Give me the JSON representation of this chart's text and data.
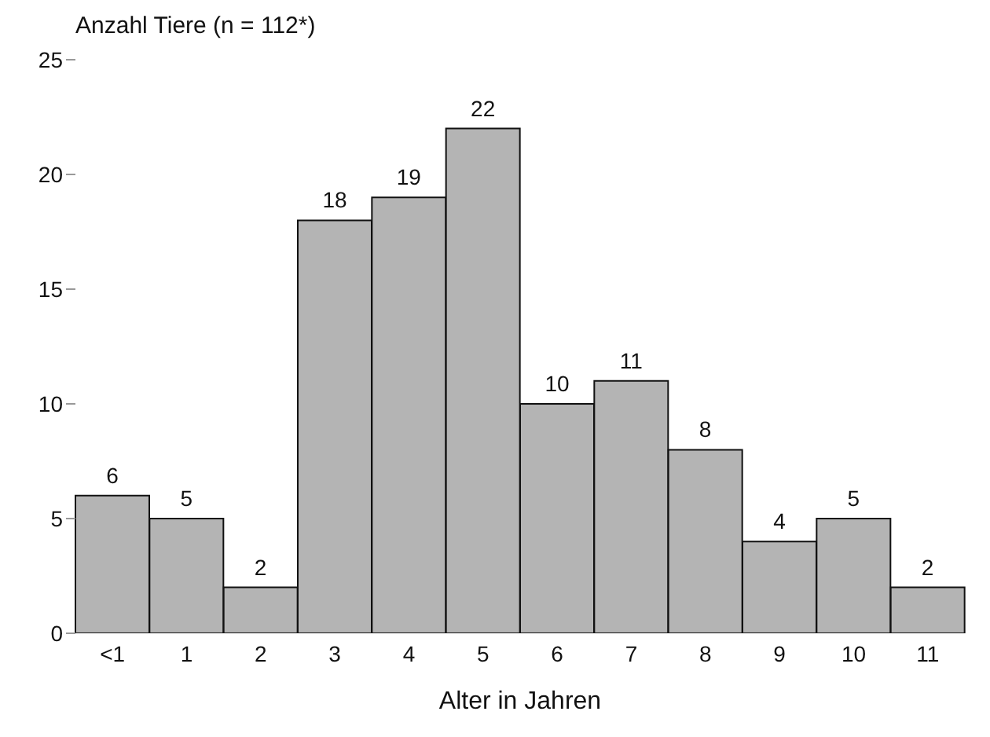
{
  "chart_data": {
    "type": "bar",
    "title": "Anzahl Tiere (n = 112*)",
    "xlabel": "Alter in Jahren",
    "categories": [
      "<1",
      "1",
      "2",
      "3",
      "4",
      "5",
      "6",
      "7",
      "8",
      "9",
      "10",
      "11"
    ],
    "values": [
      6,
      5,
      2,
      18,
      19,
      22,
      10,
      11,
      8,
      4,
      5,
      2
    ],
    "color": "#b4b4b4",
    "ylim": [
      0,
      25
    ],
    "yticks": [
      0,
      5,
      10,
      15,
      20,
      25
    ],
    "grid": false,
    "data_labels": true
  }
}
